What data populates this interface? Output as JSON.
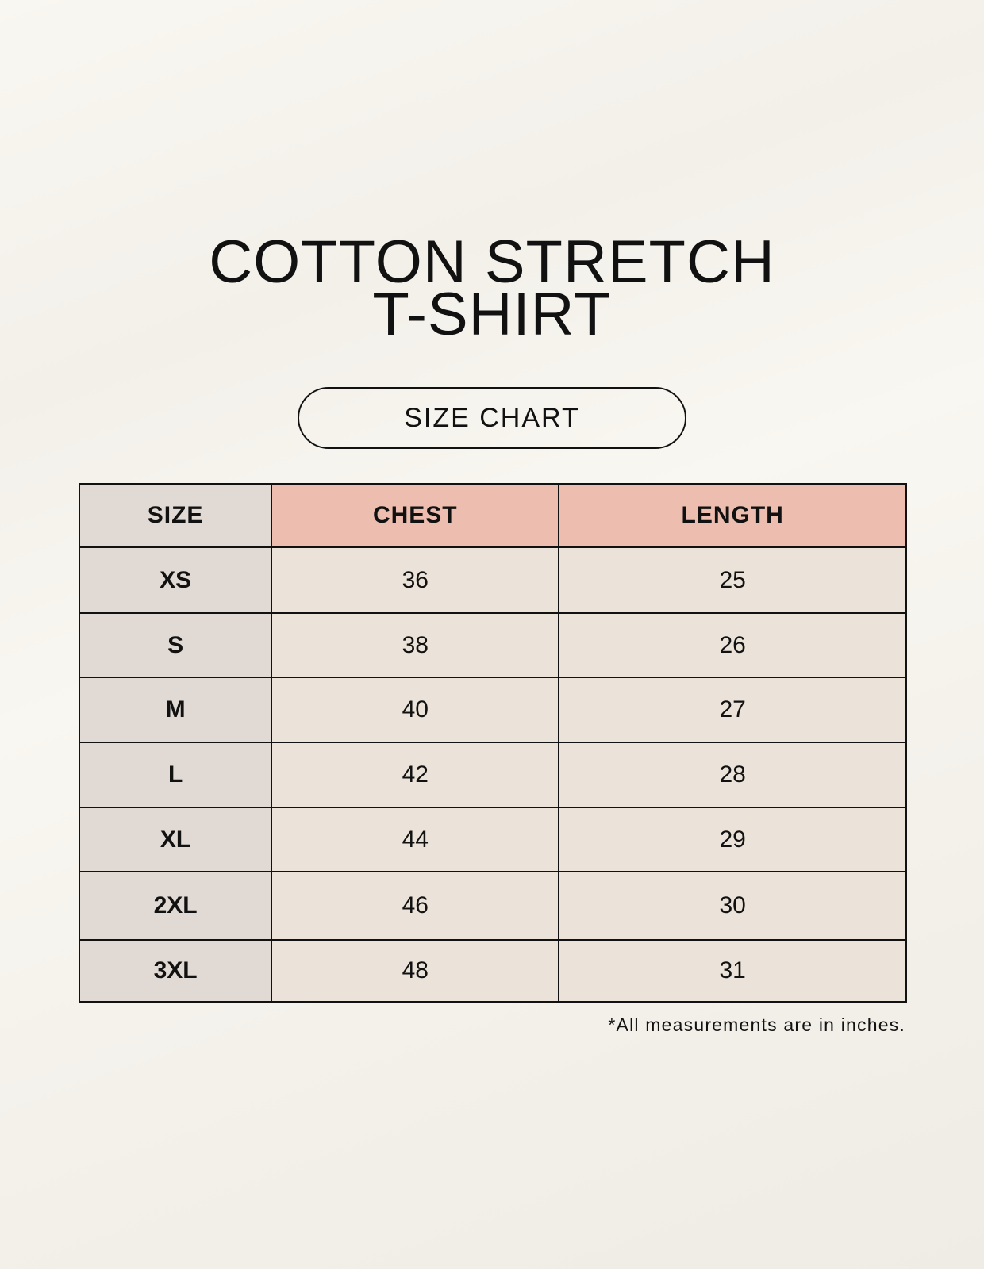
{
  "title_line1": "COTTON STRETCH",
  "title_line2": "T-SHIRT",
  "badge": "SIZE CHART",
  "table": {
    "headers": [
      "SIZE",
      "CHEST",
      "LENGTH"
    ],
    "rows": [
      [
        "XS",
        "36",
        "25"
      ],
      [
        "S",
        "38",
        "26"
      ],
      [
        "M",
        "40",
        "27"
      ],
      [
        "L",
        "42",
        "28"
      ],
      [
        "XL",
        "44",
        "29"
      ],
      [
        "2XL",
        "46",
        "30"
      ],
      [
        "3XL",
        "48",
        "31"
      ]
    ]
  },
  "note": "*All measurements are in inches.",
  "colors": {
    "header_accent": "#edbdaf",
    "size_column": "#e0d9d4",
    "cell": "#ebe3d9"
  }
}
